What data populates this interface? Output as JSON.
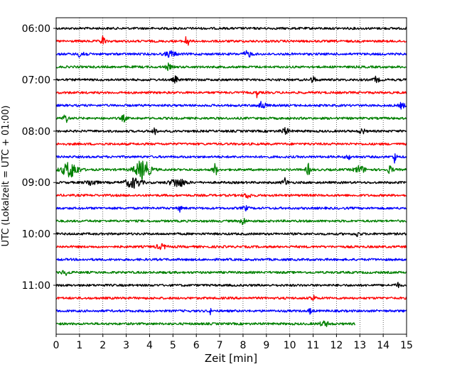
{
  "chart_data": {
    "type": "line",
    "title": "",
    "xlabel": "Zeit  [min]",
    "ylabel": "UTC (Lokalzeit = UTC + 01:00)",
    "xlim": [
      0,
      15
    ],
    "x_ticks": [
      "0",
      "1",
      "2",
      "3",
      "4",
      "5",
      "6",
      "7",
      "8",
      "9",
      "10",
      "11",
      "12",
      "13",
      "14",
      "15"
    ],
    "y_ticks": [
      "06:00",
      "07:00",
      "08:00",
      "09:00",
      "10:00",
      "11:00"
    ],
    "grid": "vertical dotted at each minute",
    "trace_interval_min": 15,
    "colors": [
      "#000000",
      "#ff0000",
      "#0000ff",
      "#008000"
    ],
    "traces": [
      {
        "time": "06:00",
        "color": "#000000",
        "end_min": 15
      },
      {
        "time": "06:15",
        "color": "#ff0000",
        "end_min": 15
      },
      {
        "time": "06:30",
        "color": "#0000ff",
        "end_min": 15
      },
      {
        "time": "06:45",
        "color": "#008000",
        "end_min": 15
      },
      {
        "time": "07:00",
        "color": "#000000",
        "end_min": 15
      },
      {
        "time": "07:15",
        "color": "#ff0000",
        "end_min": 15
      },
      {
        "time": "07:30",
        "color": "#0000ff",
        "end_min": 15
      },
      {
        "time": "07:45",
        "color": "#008000",
        "end_min": 15
      },
      {
        "time": "08:00",
        "color": "#000000",
        "end_min": 15
      },
      {
        "time": "08:15",
        "color": "#ff0000",
        "end_min": 15
      },
      {
        "time": "08:30",
        "color": "#0000ff",
        "end_min": 15
      },
      {
        "time": "08:45",
        "color": "#008000",
        "end_min": 15
      },
      {
        "time": "09:00",
        "color": "#000000",
        "end_min": 15
      },
      {
        "time": "09:15",
        "color": "#ff0000",
        "end_min": 15
      },
      {
        "time": "09:30",
        "color": "#0000ff",
        "end_min": 15
      },
      {
        "time": "09:45",
        "color": "#008000",
        "end_min": 15
      },
      {
        "time": "10:00",
        "color": "#000000",
        "end_min": 15
      },
      {
        "time": "10:15",
        "color": "#ff0000",
        "end_min": 15
      },
      {
        "time": "10:30",
        "color": "#0000ff",
        "end_min": 15
      },
      {
        "time": "10:45",
        "color": "#008000",
        "end_min": 15
      },
      {
        "time": "11:00",
        "color": "#000000",
        "end_min": 15
      },
      {
        "time": "11:15",
        "color": "#ff0000",
        "end_min": 15
      },
      {
        "time": "11:30",
        "color": "#0000ff",
        "end_min": 15
      },
      {
        "time": "11:45",
        "color": "#008000",
        "end_min": 12.8
      }
    ]
  }
}
